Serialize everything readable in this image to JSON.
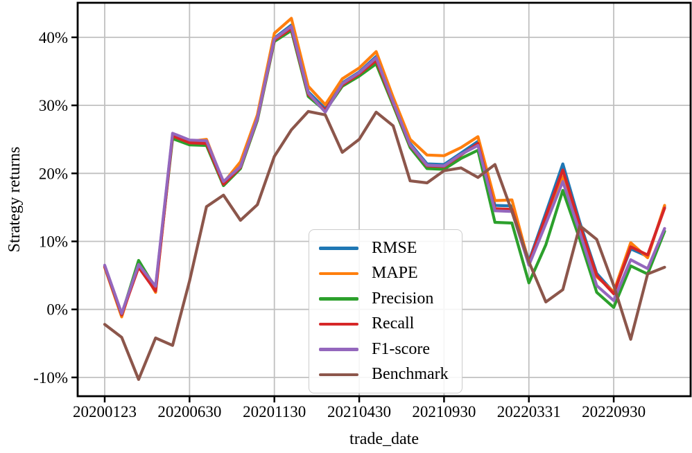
{
  "chart_data": {
    "type": "line",
    "title": "",
    "xlabel": "trade_date",
    "ylabel": "Strategy returns",
    "n_points": 34,
    "x_index_range": [
      -1.6,
      34.5
    ],
    "ylim": [
      -12.8,
      45.1
    ],
    "grid": true,
    "grid_color": "#c0c0c0",
    "legend_position": "center",
    "line_width": 4.2,
    "x_ticks": [
      {
        "index": 0,
        "label": "20200123"
      },
      {
        "index": 5,
        "label": "20200630"
      },
      {
        "index": 10,
        "label": "20201130"
      },
      {
        "index": 15,
        "label": "20210430"
      },
      {
        "index": 20,
        "label": "20210930"
      },
      {
        "index": 25,
        "label": "20220331"
      },
      {
        "index": 30,
        "label": "20220930"
      }
    ],
    "y_ticks": [
      {
        "value": -10,
        "label": "-10%"
      },
      {
        "value": 0,
        "label": "0%"
      },
      {
        "value": 10,
        "label": "10%"
      },
      {
        "value": 20,
        "label": "20%"
      },
      {
        "value": 30,
        "label": "30%"
      },
      {
        "value": 40,
        "label": "40%"
      }
    ],
    "series": [
      {
        "name": "RMSE",
        "color": "#1f77b4",
        "values": [
          6.4,
          -0.7,
          6.7,
          3.2,
          25.7,
          24.7,
          24.6,
          18.7,
          21.1,
          28.2,
          39.9,
          41.8,
          32.0,
          29.5,
          33.3,
          34.9,
          37.2,
          30.7,
          24.4,
          21.4,
          21.3,
          23.0,
          24.7,
          15.3,
          15.2,
          7.1,
          14.2,
          21.4,
          12.8,
          5.3,
          2.5,
          8.9,
          7.8,
          15.1
        ]
      },
      {
        "name": "MAPE",
        "color": "#ff7f0e",
        "values": [
          6.2,
          -1.1,
          6.8,
          2.5,
          25.6,
          24.7,
          25.0,
          18.6,
          21.7,
          28.6,
          40.6,
          42.8,
          32.8,
          30.1,
          33.9,
          35.5,
          37.9,
          31.2,
          25.0,
          22.7,
          22.6,
          23.8,
          25.4,
          16.0,
          16.1,
          6.8,
          13.2,
          19.5,
          11.8,
          4.8,
          2.6,
          9.8,
          7.6,
          15.3
        ]
      },
      {
        "name": "Precision",
        "color": "#2ca02c",
        "values": [
          6.3,
          -0.8,
          7.2,
          3.1,
          25.1,
          24.2,
          24.1,
          18.2,
          20.7,
          27.8,
          39.4,
          41.0,
          31.3,
          29.2,
          32.8,
          34.3,
          36.1,
          30.0,
          23.8,
          20.7,
          20.6,
          22.2,
          23.4,
          12.8,
          12.7,
          3.9,
          9.5,
          17.5,
          10.3,
          2.5,
          0.3,
          6.4,
          5.2,
          11.5
        ]
      },
      {
        "name": "Recall",
        "color": "#d62728",
        "values": [
          6.3,
          -0.8,
          6.2,
          2.7,
          25.5,
          24.5,
          24.4,
          18.4,
          20.9,
          28.0,
          39.6,
          41.3,
          31.6,
          29.3,
          33.0,
          34.6,
          36.6,
          30.3,
          24.1,
          21.1,
          21.0,
          22.7,
          24.4,
          14.8,
          14.7,
          6.9,
          13.7,
          20.5,
          12.4,
          5.0,
          2.3,
          9.2,
          8.0,
          14.9
        ]
      },
      {
        "name": "F1-score",
        "color": "#9467bd",
        "values": [
          6.5,
          -0.6,
          6.6,
          3.4,
          25.9,
          24.9,
          24.8,
          18.8,
          21.0,
          28.1,
          39.8,
          41.6,
          31.8,
          29.0,
          33.2,
          34.8,
          37.0,
          30.5,
          24.2,
          21.2,
          21.1,
          22.8,
          24.1,
          14.5,
          14.4,
          6.5,
          12.6,
          18.8,
          11.3,
          3.5,
          1.3,
          7.3,
          6.0,
          11.9
        ]
      },
      {
        "name": "Benchmark",
        "color": "#8c564b",
        "values": [
          -2.2,
          -4.1,
          -10.3,
          -4.2,
          -5.3,
          4.2,
          15.1,
          16.8,
          13.1,
          15.4,
          22.5,
          26.4,
          29.1,
          28.6,
          23.1,
          25.0,
          29.0,
          27.0,
          18.9,
          18.6,
          20.4,
          20.8,
          19.4,
          21.3,
          14.4,
          7.0,
          1.1,
          2.9,
          12.3,
          10.3,
          3.5,
          -4.4,
          5.2,
          6.2
        ]
      }
    ]
  }
}
